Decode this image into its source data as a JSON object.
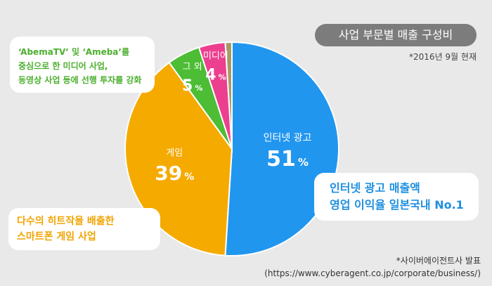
{
  "chart_data": {
    "type": "pie",
    "title": "사업 부문별 매출 구성비",
    "subtitle": "*2016년 9월 현재",
    "slices": [
      {
        "name": "인터넷 광고",
        "value": 51,
        "label_num": "51",
        "color": "#2196ef"
      },
      {
        "name": "게임",
        "value": 39,
        "label_num": "39",
        "color": "#f5aa00"
      },
      {
        "name": "그 외",
        "value": 5,
        "label_num": "5",
        "color": "#4cbd34"
      },
      {
        "name": "미디어",
        "value": 4,
        "label_num": "4",
        "color": "#ec3f8f"
      },
      {
        "name": "",
        "value": 1,
        "label_num": "",
        "color": "#a89a66"
      }
    ],
    "unit": "%"
  },
  "callouts": {
    "media": [
      "‘AbemaTV’ 및 ‘Ameba’를",
      "중심으로 한 미디어 사업,",
      "동영상 사업 등에 선행 투자를 강화"
    ],
    "game": [
      "다수의 히트작을 배출한",
      "스마트폰 게임 사업"
    ],
    "ad": [
      "인터넷 광고 매출액",
      "영업 이익율 일본국내 No.1"
    ]
  },
  "source": {
    "line1": "*사이버에이전트사 발표",
    "line2": "(https://www.cyberagent.co.jp/corporate/business/)"
  },
  "colors": {
    "title_bg": "#7c7c7c",
    "green": "#4caf2e",
    "orange": "#f0a400",
    "blue": "#1e8fe0"
  }
}
